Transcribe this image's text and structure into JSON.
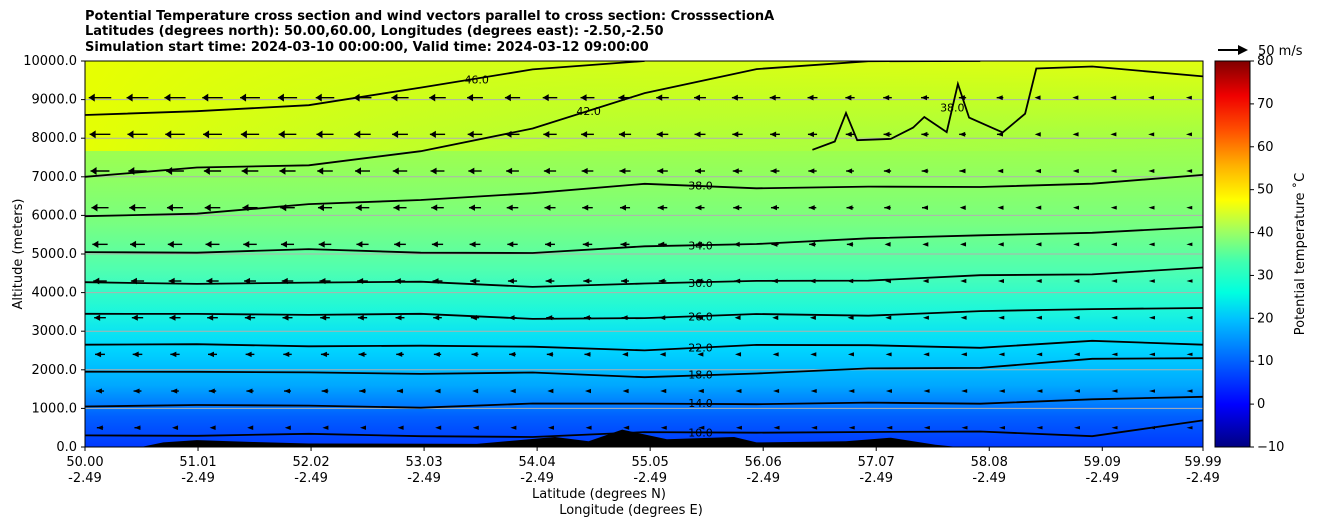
{
  "chart_data": {
    "type": "heatmap",
    "title_lines": [
      "Potential Temperature cross section and wind vectors parallel to cross section: CrosssectionA",
      "Latitudes (degrees north): 50.00,60.00, Longitudes (degrees east): -2.50,-2.50",
      "Simulation start time: 2024-03-10 00:00:00, Valid time: 2024-03-12 09:00:00"
    ],
    "xlabel_lines": [
      "Latitude (degrees N)",
      "Longitude (degrees E)"
    ],
    "ylabel": "Altitude (meters)",
    "x_ticks": [
      {
        "lat": "50.00",
        "lon": "-2.49"
      },
      {
        "lat": "51.01",
        "lon": "-2.49"
      },
      {
        "lat": "52.02",
        "lon": "-2.49"
      },
      {
        "lat": "53.03",
        "lon": "-2.49"
      },
      {
        "lat": "54.04",
        "lon": "-2.49"
      },
      {
        "lat": "55.05",
        "lon": "-2.49"
      },
      {
        "lat": "56.06",
        "lon": "-2.49"
      },
      {
        "lat": "57.07",
        "lon": "-2.49"
      },
      {
        "lat": "58.08",
        "lon": "-2.49"
      },
      {
        "lat": "59.09",
        "lon": "-2.49"
      },
      {
        "lat": "59.99",
        "lon": "-2.49"
      }
    ],
    "xlim": [
      50.0,
      59.99
    ],
    "y_ticks": [
      "0.0",
      "1000.0",
      "2000.0",
      "3000.0",
      "4000.0",
      "5000.0",
      "6000.0",
      "7000.0",
      "8000.0",
      "9000.0",
      "10000.0"
    ],
    "ylim": [
      0,
      10000
    ],
    "grid": "horizontal",
    "colorbar": {
      "label": "Potential temperature ˚C",
      "ticks": [
        "−10",
        "0",
        "10",
        "20",
        "30",
        "40",
        "50",
        "60",
        "70",
        "80"
      ],
      "range": [
        -10,
        80
      ],
      "colormap": "jet"
    },
    "quiver_key_label": "50 m/s",
    "contours": [
      {
        "label": "10.0",
        "points": [
          [
            50.0,
            300
          ],
          [
            51.0,
            330
          ],
          [
            52.0,
            290
          ],
          [
            53.0,
            310
          ],
          [
            54.0,
            270
          ],
          [
            55.0,
            340
          ],
          [
            56.0,
            420
          ],
          [
            57.0,
            370
          ],
          [
            58.0,
            380
          ],
          [
            59.0,
            330
          ],
          [
            59.99,
            690
          ]
        ]
      },
      {
        "label": "14.0",
        "points": [
          [
            50.0,
            1050
          ],
          [
            51.0,
            1080
          ],
          [
            52.0,
            1040
          ],
          [
            53.0,
            1070
          ],
          [
            54.0,
            1090
          ],
          [
            55.0,
            1120
          ],
          [
            56.0,
            1150
          ],
          [
            57.0,
            1100
          ],
          [
            58.0,
            1150
          ],
          [
            59.0,
            1250
          ],
          [
            59.99,
            1300
          ]
        ]
      },
      {
        "label": "18.0",
        "points": [
          [
            50.0,
            1950
          ],
          [
            51.0,
            1900
          ],
          [
            52.0,
            1950
          ],
          [
            53.0,
            1920
          ],
          [
            54.0,
            1880
          ],
          [
            55.0,
            1850
          ],
          [
            56.0,
            1900
          ],
          [
            57.0,
            2000
          ],
          [
            58.0,
            2100
          ],
          [
            59.0,
            2250
          ],
          [
            59.99,
            2300
          ]
        ]
      },
      {
        "label": "22.0",
        "points": [
          [
            50.0,
            2650
          ],
          [
            51.0,
            2620
          ],
          [
            52.0,
            2660
          ],
          [
            53.0,
            2600
          ],
          [
            54.0,
            2580
          ],
          [
            55.0,
            2550
          ],
          [
            56.0,
            2600
          ],
          [
            57.0,
            2650
          ],
          [
            58.0,
            2600
          ],
          [
            59.0,
            2700
          ],
          [
            59.99,
            2650
          ]
        ]
      },
      {
        "label": "26.0",
        "points": [
          [
            50.0,
            3450
          ],
          [
            51.0,
            3450
          ],
          [
            52.0,
            3460
          ],
          [
            53.0,
            3400
          ],
          [
            54.0,
            3350
          ],
          [
            55.0,
            3350
          ],
          [
            56.0,
            3400
          ],
          [
            57.0,
            3450
          ],
          [
            58.0,
            3500
          ],
          [
            59.0,
            3550
          ],
          [
            59.99,
            3600
          ]
        ]
      },
      {
        "label": "30.0",
        "points": [
          [
            50.0,
            4270
          ],
          [
            51.0,
            4270
          ],
          [
            52.0,
            4250
          ],
          [
            53.0,
            4250
          ],
          [
            54.0,
            4200
          ],
          [
            55.0,
            4200
          ],
          [
            56.0,
            4300
          ],
          [
            57.0,
            4350
          ],
          [
            58.0,
            4400
          ],
          [
            59.0,
            4500
          ],
          [
            59.99,
            4650
          ]
        ]
      },
      {
        "label": "34.0",
        "points": [
          [
            50.0,
            5050
          ],
          [
            51.0,
            5080
          ],
          [
            52.0,
            5080
          ],
          [
            53.0,
            5050
          ],
          [
            54.0,
            5050
          ],
          [
            55.0,
            5150
          ],
          [
            56.0,
            5300
          ],
          [
            57.0,
            5400
          ],
          [
            58.0,
            5450
          ],
          [
            59.0,
            5600
          ],
          [
            59.99,
            5700
          ]
        ]
      },
      {
        "label": "38.0",
        "points": [
          [
            50.0,
            5980
          ],
          [
            51.0,
            6050
          ],
          [
            52.0,
            6250
          ],
          [
            53.0,
            6450
          ],
          [
            54.0,
            6550
          ],
          [
            55.0,
            6800
          ],
          [
            56.0,
            6750
          ],
          [
            57.0,
            6700
          ],
          [
            58.0,
            6750
          ],
          [
            59.0,
            6850
          ],
          [
            59.99,
            7050
          ]
        ]
      },
      {
        "label": "42.0",
        "points": [
          [
            50.0,
            7000
          ],
          [
            51.0,
            7200
          ],
          [
            52.0,
            7300
          ],
          [
            53.0,
            7700
          ],
          [
            54.0,
            8200
          ],
          [
            55.0,
            9200
          ],
          [
            56.0,
            9800
          ],
          [
            57.0,
            9950
          ],
          [
            58.0,
            10000
          ]
        ]
      },
      {
        "label": "46.0",
        "points": [
          [
            50.0,
            8600
          ],
          [
            51.0,
            8650
          ],
          [
            52.0,
            8900
          ],
          [
            53.0,
            9300
          ],
          [
            54.0,
            9750
          ],
          [
            55.0,
            10000
          ]
        ]
      },
      {
        "label": "38.0",
        "points": [
          [
            56.5,
            7700
          ],
          [
            56.7,
            7900
          ],
          [
            56.8,
            8700
          ],
          [
            56.9,
            7900
          ],
          [
            57.2,
            8000
          ],
          [
            57.4,
            8300
          ],
          [
            57.5,
            8500
          ],
          [
            57.7,
            8200
          ],
          [
            57.8,
            9400
          ],
          [
            57.9,
            8500
          ],
          [
            58.2,
            8200
          ],
          [
            58.4,
            8600
          ],
          [
            58.5,
            9800
          ],
          [
            59.0,
            9900
          ],
          [
            59.99,
            9600
          ]
        ]
      }
    ],
    "terrain": [
      {
        "x": 50.7,
        "h": 120
      },
      {
        "x": 51.0,
        "h": 180
      },
      {
        "x": 51.5,
        "h": 130
      },
      {
        "x": 52.0,
        "h": 90
      },
      {
        "x": 53.5,
        "h": 80
      },
      {
        "x": 54.2,
        "h": 260
      },
      {
        "x": 54.5,
        "h": 150
      },
      {
        "x": 54.8,
        "h": 450
      },
      {
        "x": 55.2,
        "h": 200
      },
      {
        "x": 55.8,
        "h": 260
      },
      {
        "x": 56.0,
        "h": 120
      },
      {
        "x": 56.8,
        "h": 150
      },
      {
        "x": 57.2,
        "h": 240
      },
      {
        "x": 57.6,
        "h": 60
      }
    ]
  }
}
